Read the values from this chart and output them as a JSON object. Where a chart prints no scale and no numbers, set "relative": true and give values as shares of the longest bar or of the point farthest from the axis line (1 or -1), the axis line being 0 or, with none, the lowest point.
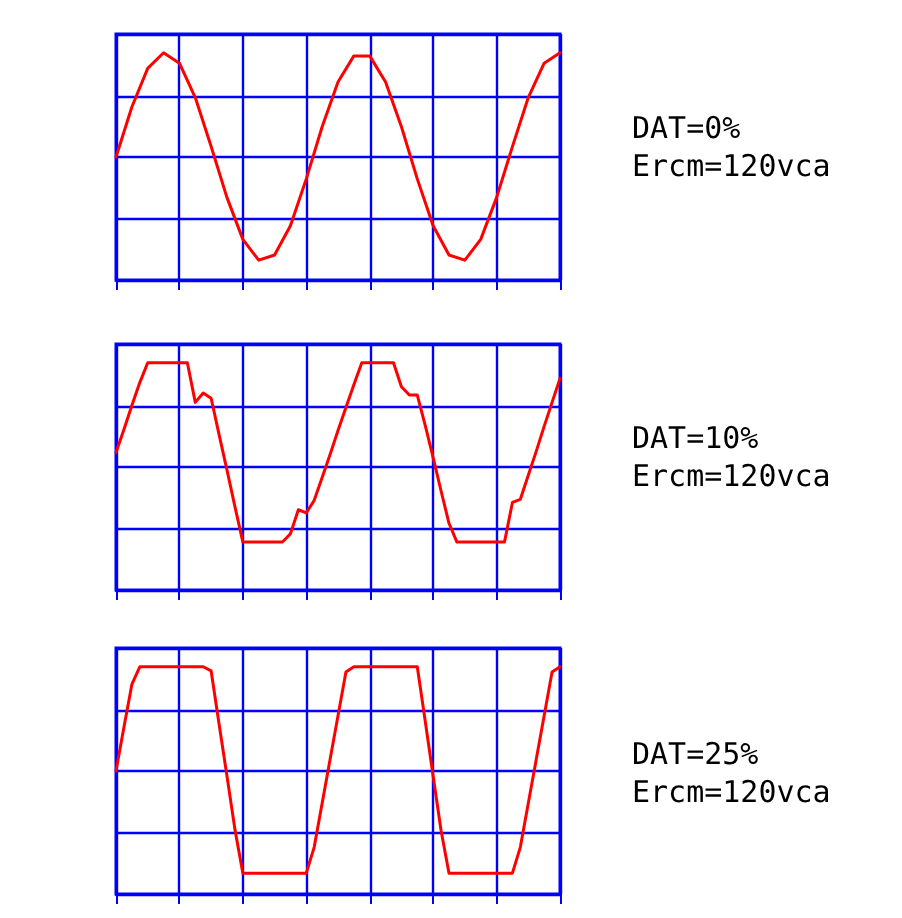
{
  "chart_data": [
    {
      "type": "line",
      "relative": true,
      "grid": true,
      "marker": "none",
      "line_style": "solid",
      "annotations": [
        "DAT=0%",
        "Ercm=120vca"
      ],
      "categories": [
        null,
        null,
        null,
        null,
        null,
        null,
        null,
        null,
        null,
        null,
        null,
        null,
        null,
        null,
        null,
        null,
        null,
        null,
        null,
        null,
        null,
        null,
        null,
        null,
        null,
        null,
        null,
        null,
        null
      ],
      "series": [
        {
          "color": "#ff0000",
          "values": [
            0,
            0.48,
            0.85,
            1,
            0.9,
            0.57,
            0.1,
            -0.39,
            -0.79,
            -0.99,
            -0.94,
            -0.66,
            -0.21,
            0.29,
            0.72,
            0.97,
            0.97,
            0.72,
            0.29,
            -0.21,
            -0.66,
            -0.94,
            -0.99,
            -0.79,
            -0.39,
            0.1,
            0.57,
            0.9,
            1
          ]
        }
      ]
    },
    {
      "type": "line",
      "relative": true,
      "grid": true,
      "marker": "none",
      "line_style": "solid",
      "annotations": [
        "DAT=10%",
        "Ercm=120vca"
      ],
      "categories": [
        null,
        null,
        null,
        null,
        null,
        null,
        null,
        null,
        null,
        null,
        null,
        null,
        null,
        null,
        null,
        null,
        null,
        null,
        null,
        null,
        null,
        null,
        null,
        null,
        null,
        null,
        null,
        null,
        null,
        null,
        null,
        null,
        null,
        null,
        null,
        null,
        null,
        null,
        null,
        null,
        null,
        null,
        null,
        null,
        null,
        null,
        null,
        null,
        null,
        null,
        null,
        null,
        null,
        null,
        null,
        null,
        null
      ],
      "series": [
        {
          "color": "#ff0000",
          "values": [
            0.14,
            0.36,
            0.59,
            0.81,
            1,
            1,
            1,
            1,
            1,
            1,
            0.62,
            0.71,
            0.66,
            0.31,
            -0.03,
            -0.38,
            -0.72,
            -0.72,
            -0.72,
            -0.72,
            -0.72,
            -0.72,
            -0.64,
            -0.41,
            -0.44,
            -0.32,
            -0.1,
            0.12,
            0.35,
            0.57,
            0.79,
            1,
            1,
            1,
            1,
            1,
            0.77,
            0.69,
            0.69,
            0.4,
            0.09,
            -0.23,
            -0.54,
            -0.72,
            -0.72,
            -0.72,
            -0.72,
            -0.72,
            -0.72,
            -0.72,
            -0.34,
            -0.31,
            -0.08,
            0.15,
            0.39,
            0.62,
            0.85
          ]
        }
      ]
    },
    {
      "type": "line",
      "relative": true,
      "grid": true,
      "marker": "none",
      "line_style": "solid",
      "annotations": [
        "DAT=25%",
        "Ercm=120vca"
      ],
      "categories": [
        null,
        null,
        null,
        null,
        null,
        null,
        null,
        null,
        null,
        null,
        null,
        null,
        null,
        null,
        null,
        null,
        null,
        null,
        null,
        null,
        null,
        null,
        null,
        null,
        null,
        null,
        null,
        null,
        null,
        null,
        null,
        null,
        null,
        null,
        null,
        null,
        null,
        null,
        null,
        null,
        null,
        null,
        null,
        null,
        null,
        null,
        null,
        null,
        null,
        null,
        null,
        null,
        null,
        null,
        null,
        null,
        null
      ],
      "series": [
        {
          "color": "#ff0000",
          "values": [
            0,
            0.42,
            0.83,
            1,
            1,
            1,
            1,
            1,
            1,
            1,
            1,
            1,
            0.96,
            0.45,
            -0.05,
            -0.56,
            -0.98,
            -0.98,
            -0.98,
            -0.98,
            -0.98,
            -0.98,
            -0.98,
            -0.98,
            -0.98,
            -0.73,
            -0.31,
            0.11,
            0.53,
            0.95,
            1,
            1,
            1,
            1,
            1,
            1,
            1,
            1,
            1,
            0.48,
            -0.05,
            -0.57,
            -0.98,
            -0.98,
            -0.98,
            -0.98,
            -0.98,
            -0.98,
            -0.98,
            -0.98,
            -0.98,
            -0.73,
            -0.31,
            0.11,
            0.53,
            0.95,
            1
          ]
        }
      ]
    }
  ]
}
